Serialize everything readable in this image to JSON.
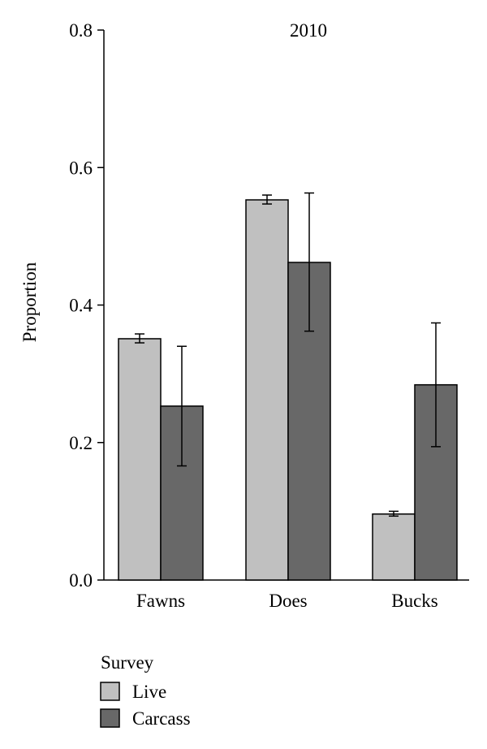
{
  "chart_data": {
    "type": "bar",
    "annotation": "2010",
    "ylabel": "Proportion",
    "xlabel": "",
    "ylim": [
      0,
      0.8
    ],
    "yticks": [
      "0.0",
      "0.2",
      "0.4",
      "0.6",
      "0.8"
    ],
    "ytick_values": [
      0,
      0.2,
      0.4,
      0.6,
      0.8
    ],
    "categories": [
      "Fawns",
      "Does",
      "Bucks"
    ],
    "series": [
      {
        "name": "Live",
        "color": "#c0c0c0",
        "values": [
          0.351,
          0.553,
          0.096
        ],
        "error_low": [
          0.345,
          0.547,
          0.093
        ],
        "error_high": [
          0.358,
          0.56,
          0.1
        ]
      },
      {
        "name": "Carcass",
        "color": "#686868",
        "values": [
          0.253,
          0.462,
          0.284
        ],
        "error_low": [
          0.166,
          0.362,
          0.194
        ],
        "error_high": [
          0.34,
          0.563,
          0.374
        ]
      }
    ],
    "legend": {
      "title": "Survey",
      "position": "bottom-left"
    }
  }
}
